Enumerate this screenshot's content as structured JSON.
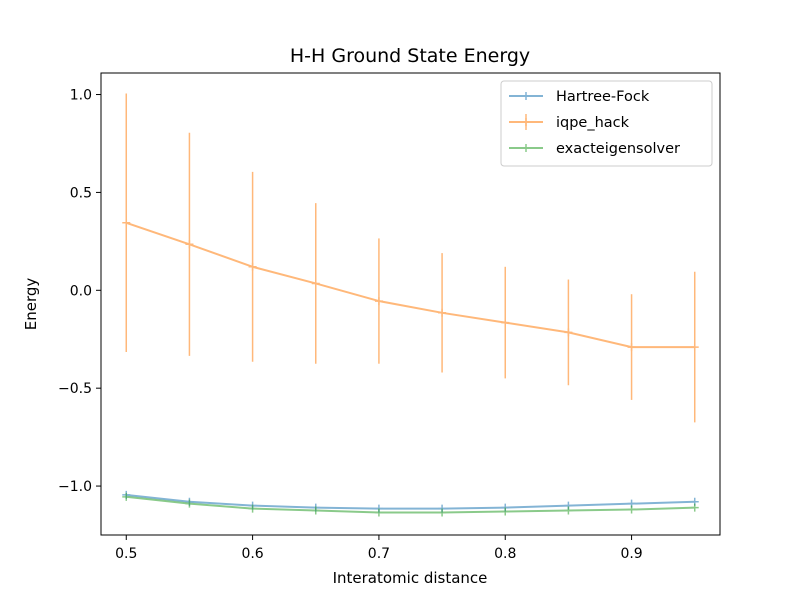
{
  "chart_data": {
    "type": "line",
    "title": "H-H Ground State Energy",
    "xlabel": "Interatomic distance",
    "ylabel": "Energy",
    "xlim": [
      0.48,
      0.97
    ],
    "ylim": [
      -1.25,
      1.11
    ],
    "xticks": [
      0.5,
      0.6,
      0.7,
      0.8,
      0.9
    ],
    "xtick_labels": [
      "0.5",
      "0.6",
      "0.7",
      "0.8",
      "0.9"
    ],
    "yticks": [
      -1.0,
      -0.5,
      0.0,
      0.5,
      1.0
    ],
    "ytick_labels": [
      "−1.0",
      "−0.5",
      "0.0",
      "0.5",
      "1.0"
    ],
    "grid": false,
    "legend_position": "top-right",
    "x": [
      0.5,
      0.55,
      0.6,
      0.65,
      0.7,
      0.75,
      0.8,
      0.85,
      0.9,
      0.95
    ],
    "series": [
      {
        "name": "Hartree-Fock",
        "color": "#1f77b4",
        "values": [
          -1.045,
          -1.08,
          -1.1,
          -1.11,
          -1.115,
          -1.115,
          -1.11,
          -1.1,
          -1.09,
          -1.08
        ]
      },
      {
        "name": "iqpe_hack",
        "color": "#ff7f0e",
        "values": [
          0.345,
          0.235,
          0.12,
          0.035,
          -0.055,
          -0.115,
          -0.165,
          -0.215,
          -0.29,
          -0.29
        ],
        "error": [
          0.66,
          0.57,
          0.485,
          0.41,
          0.32,
          0.305,
          0.285,
          0.27,
          0.27,
          0.385
        ]
      },
      {
        "name": "exacteigensolver",
        "color": "#2ca02c",
        "values": [
          -1.055,
          -1.09,
          -1.115,
          -1.125,
          -1.135,
          -1.135,
          -1.13,
          -1.125,
          -1.12,
          -1.11
        ]
      }
    ]
  }
}
